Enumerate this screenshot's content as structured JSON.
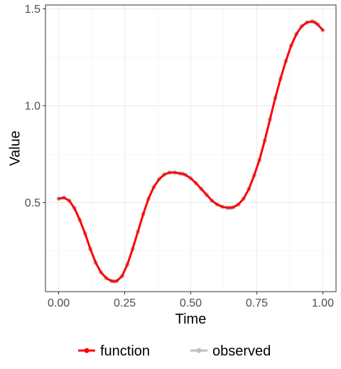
{
  "chart_data": {
    "type": "line",
    "xlabel": "Time",
    "ylabel": "Value",
    "xlim": [
      -0.05,
      1.05
    ],
    "ylim": [
      0.04,
      1.52
    ],
    "x_ticks": [
      0.0,
      0.25,
      0.5,
      0.75,
      1.0
    ],
    "x_tick_labels": [
      "0.00",
      "0.25",
      "0.50",
      "0.75",
      "1.00"
    ],
    "y_ticks": [
      0.5,
      1.0,
      1.5
    ],
    "y_tick_labels": [
      "0.5",
      "1.0",
      "1.5"
    ],
    "grid": true,
    "legend_position": "bottom",
    "series": [
      {
        "name": "function",
        "style": "line",
        "color": "#ff0000",
        "x": [
          0,
          0.02,
          0.04,
          0.06,
          0.08,
          0.1,
          0.12,
          0.14,
          0.16,
          0.18,
          0.2,
          0.21,
          0.22,
          0.24,
          0.26,
          0.28,
          0.3,
          0.32,
          0.34,
          0.36,
          0.38,
          0.4,
          0.42,
          0.44,
          0.46,
          0.47,
          0.48,
          0.5,
          0.52,
          0.54,
          0.56,
          0.58,
          0.6,
          0.62,
          0.64,
          0.65,
          0.66,
          0.68,
          0.7,
          0.72,
          0.74,
          0.76,
          0.78,
          0.8,
          0.82,
          0.84,
          0.86,
          0.88,
          0.9,
          0.92,
          0.94,
          0.96,
          0.97,
          0.98,
          1.0
        ],
        "y": [
          0.52,
          0.525,
          0.51,
          0.47,
          0.41,
          0.34,
          0.26,
          0.19,
          0.14,
          0.11,
          0.095,
          0.093,
          0.095,
          0.12,
          0.18,
          0.26,
          0.35,
          0.44,
          0.52,
          0.58,
          0.62,
          0.645,
          0.655,
          0.655,
          0.65,
          0.648,
          0.643,
          0.625,
          0.6,
          0.57,
          0.54,
          0.51,
          0.49,
          0.478,
          0.473,
          0.473,
          0.475,
          0.49,
          0.52,
          0.57,
          0.64,
          0.72,
          0.82,
          0.93,
          1.04,
          1.14,
          1.23,
          1.31,
          1.37,
          1.41,
          1.43,
          1.435,
          1.43,
          1.42,
          1.39
        ]
      },
      {
        "name": "observed",
        "style": "points",
        "color": "#bebebe",
        "x": [
          0,
          0.02,
          0.04,
          0.06,
          0.08,
          0.1,
          0.12,
          0.14,
          0.16,
          0.18,
          0.2,
          0.21,
          0.22,
          0.24,
          0.26,
          0.28,
          0.3,
          0.32,
          0.34,
          0.36,
          0.38,
          0.4,
          0.42,
          0.44,
          0.46,
          0.47,
          0.48,
          0.5,
          0.52,
          0.54,
          0.56,
          0.58,
          0.6,
          0.62,
          0.64,
          0.65,
          0.66,
          0.68,
          0.7,
          0.72,
          0.74,
          0.76,
          0.78,
          0.8,
          0.82,
          0.84,
          0.86,
          0.88,
          0.9,
          0.92,
          0.94,
          0.96,
          0.97,
          0.98,
          1.0
        ],
        "y": [
          0.52,
          0.525,
          0.51,
          0.47,
          0.41,
          0.34,
          0.26,
          0.19,
          0.14,
          0.11,
          0.095,
          0.093,
          0.095,
          0.12,
          0.18,
          0.26,
          0.35,
          0.44,
          0.52,
          0.58,
          0.62,
          0.645,
          0.655,
          0.655,
          0.65,
          0.648,
          0.643,
          0.625,
          0.6,
          0.57,
          0.54,
          0.51,
          0.49,
          0.478,
          0.473,
          0.473,
          0.475,
          0.49,
          0.52,
          0.57,
          0.64,
          0.72,
          0.82,
          0.93,
          1.04,
          1.14,
          1.23,
          1.31,
          1.37,
          1.41,
          1.43,
          1.435,
          1.43,
          1.42,
          1.39
        ]
      }
    ],
    "legend": [
      {
        "label": "function",
        "color": "#ff0000"
      },
      {
        "label": "observed",
        "color": "#bebebe"
      }
    ]
  }
}
